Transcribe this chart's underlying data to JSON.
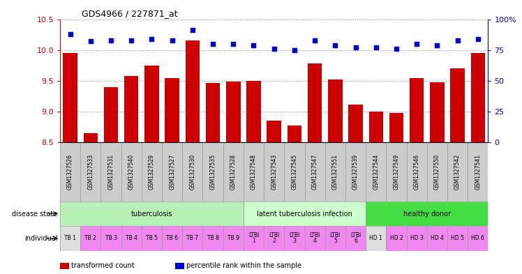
{
  "title": "GDS4966 / 227871_at",
  "samples": [
    "GSM1327526",
    "GSM1327533",
    "GSM1327531",
    "GSM1327540",
    "GSM1327529",
    "GSM1327527",
    "GSM1327530",
    "GSM1327535",
    "GSM1327528",
    "GSM1327548",
    "GSM1327543",
    "GSM1327545",
    "GSM1327547",
    "GSM1327551",
    "GSM1327539",
    "GSM1327544",
    "GSM1327549",
    "GSM1327546",
    "GSM1327550",
    "GSM1327542",
    "GSM1327541"
  ],
  "transformed_count": [
    9.95,
    8.65,
    9.4,
    9.58,
    9.75,
    9.55,
    10.15,
    9.47,
    9.49,
    9.5,
    8.86,
    8.77,
    9.78,
    9.52,
    9.11,
    9.0,
    8.98,
    9.55,
    9.48,
    9.7,
    9.95
  ],
  "percentile_rank": [
    88,
    82,
    83,
    83,
    84,
    83,
    91,
    80,
    80,
    79,
    76,
    75,
    83,
    79,
    77,
    77,
    76,
    80,
    79,
    83,
    84
  ],
  "ylim_left": [
    8.5,
    10.5
  ],
  "ylim_right": [
    0,
    100
  ],
  "yticks_left": [
    8.5,
    9.0,
    9.5,
    10.0,
    10.5
  ],
  "yticks_right": [
    0,
    25,
    50,
    75,
    100
  ],
  "disease_groups": [
    {
      "label": "tuberculosis",
      "start": 0,
      "end": 9,
      "color": "#b8f0b8"
    },
    {
      "label": "latent tuberculosis infection",
      "start": 9,
      "end": 15,
      "color": "#ccffcc"
    },
    {
      "label": "healthy donor",
      "start": 15,
      "end": 21,
      "color": "#44dd44"
    }
  ],
  "individual_labels": [
    "TB 1",
    "TB 2",
    "TB 3",
    "TB 4",
    "TB 5",
    "TB 6",
    "TB 7",
    "TB 8",
    "TB 9",
    "LTBI\n1",
    "LTBI\n2",
    "LTBI\n3",
    "LTBI\n4",
    "LTBI\n5",
    "LTBI\n6",
    "HD 1",
    "HD 2",
    "HD 3",
    "HD 4",
    "HD 5",
    "HD 6"
  ],
  "individual_colors": [
    "#dddddd",
    "#ee88ee",
    "#ee88ee",
    "#ee88ee",
    "#ee88ee",
    "#ee88ee",
    "#ee88ee",
    "#ee88ee",
    "#ee88ee",
    "#ee88ee",
    "#ee88ee",
    "#ee88ee",
    "#ee88ee",
    "#ee88ee",
    "#ee88ee",
    "#dddddd",
    "#ee88ee",
    "#ee88ee",
    "#ee88ee",
    "#ee88ee",
    "#ee88ee"
  ],
  "sample_box_color": "#cccccc",
  "bar_color": "#cc0000",
  "dot_color": "#0000cc",
  "grid_color": "#888888",
  "axis_color_left": "#cc0000",
  "axis_color_right": "#0000cc",
  "legend_items": [
    {
      "color": "#cc0000",
      "label": "transformed count"
    },
    {
      "color": "#0000cc",
      "label": "percentile rank within the sample"
    }
  ]
}
